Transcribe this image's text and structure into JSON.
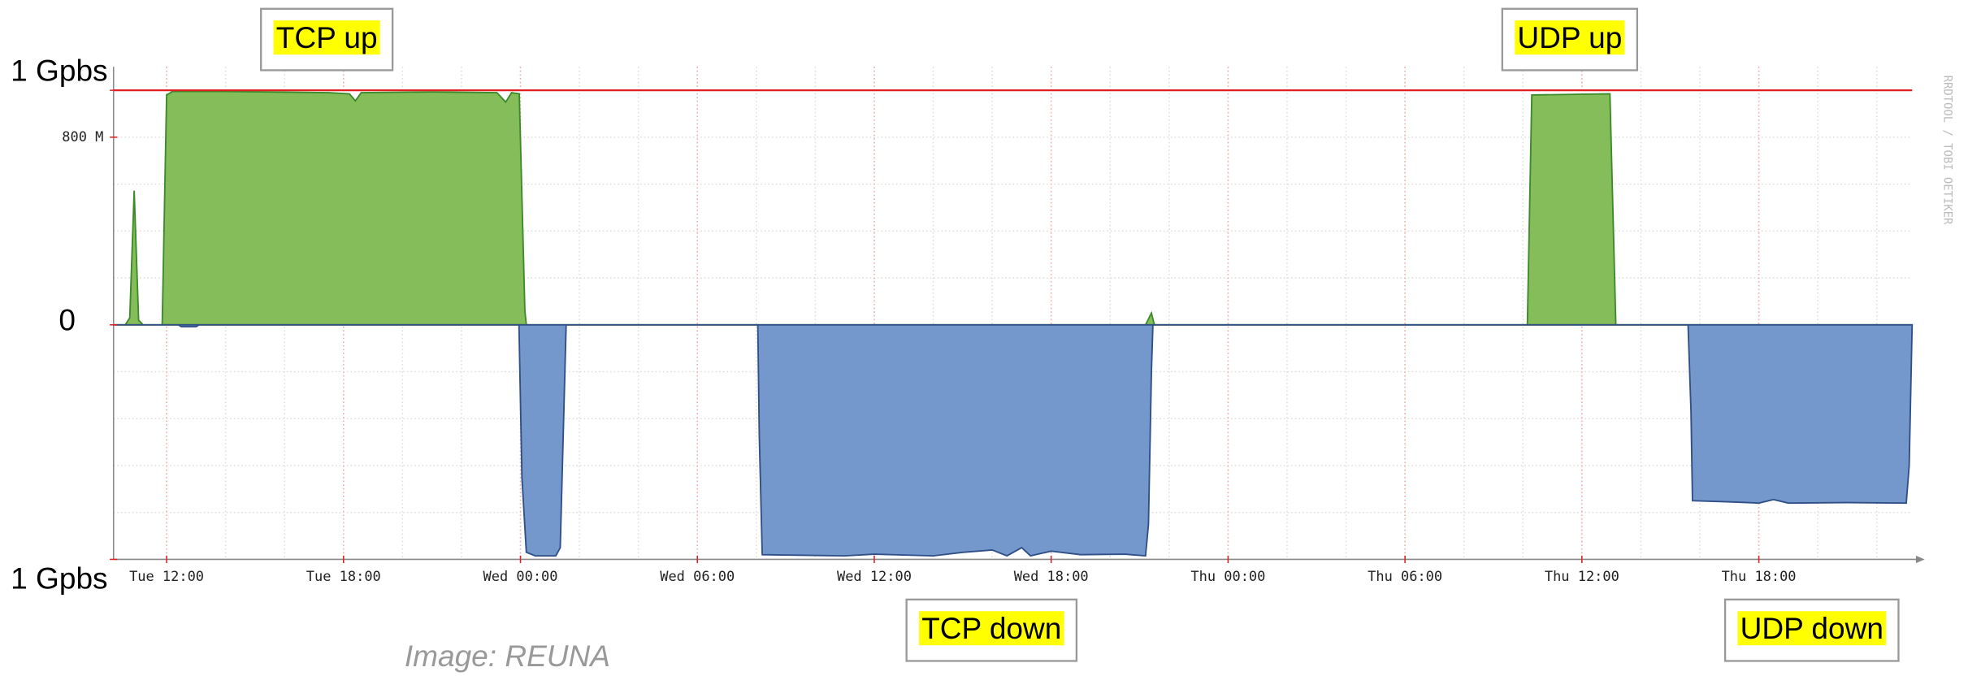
{
  "chart_data": {
    "type": "area",
    "xlim": [
      10.2,
      71.2
    ],
    "xticks": [
      {
        "value": 12,
        "label": "Tue 12:00"
      },
      {
        "value": 18,
        "label": "Tue 18:00"
      },
      {
        "value": 24,
        "label": "Wed 00:00"
      },
      {
        "value": 30,
        "label": "Wed 06:00"
      },
      {
        "value": 36,
        "label": "Wed 12:00"
      },
      {
        "value": 42,
        "label": "Wed 18:00"
      },
      {
        "value": 48,
        "label": "Thu 00:00"
      },
      {
        "value": 54,
        "label": "Thu 06:00"
      },
      {
        "value": 60,
        "label": "Thu 12:00"
      },
      {
        "value": 66,
        "label": "Thu 18:00"
      }
    ],
    "ylim": [
      -1000,
      1100
    ],
    "yticks": [
      {
        "value": 1000,
        "label": "1 Gpbs"
      },
      {
        "value": 800,
        "label": "800 M"
      },
      0,
      {
        "value": -1000,
        "label": "1 Gpbs"
      }
    ],
    "limit_line": 1000,
    "limit_color": "#e02020",
    "grid": true,
    "series": [
      {
        "color": "#84bd5a",
        "line_color": "#3d8a2a",
        "x": [
          10.2,
          10.6,
          10.75,
          10.9,
          11.05,
          11.2,
          11.85,
          12.0,
          12.2,
          14,
          16,
          17.5,
          18.2,
          18.4,
          18.6,
          21,
          23.2,
          23.5,
          23.7,
          23.96,
          24.15,
          24.2,
          45.2,
          45.4,
          45.5,
          58.15,
          58.3,
          60.95,
          61.15,
          71.2
        ],
        "values": [
          0,
          0,
          30,
          572,
          20,
          0,
          0,
          980,
          995,
          995,
          992,
          990,
          985,
          955,
          990,
          993,
          990,
          950,
          990,
          985,
          60,
          0,
          0,
          50,
          0,
          0,
          980,
          985,
          0,
          0
        ]
      },
      {
        "color": "#7497cc",
        "line_color": "#2f4f86",
        "x": [
          10.2,
          12.4,
          12.5,
          13,
          13.1,
          23.95,
          24.05,
          24.2,
          24.5,
          25.2,
          25.35,
          25.55,
          32.05,
          32.1,
          32.2,
          35,
          36,
          38,
          39,
          40,
          40.5,
          41,
          41.3,
          42,
          43,
          44.5,
          45.2,
          45.3,
          45.4,
          45.45,
          63.6,
          63.7,
          63.75,
          65,
          66,
          66.5,
          67,
          69,
          71.0,
          71.1,
          71.2
        ],
        "values": [
          0,
          0,
          -8,
          -8,
          0,
          0,
          -650,
          -970,
          -985,
          -985,
          -950,
          0,
          0,
          -470,
          -980,
          -985,
          -978,
          -985,
          -970,
          -960,
          -985,
          -950,
          -985,
          -965,
          -980,
          -978,
          -985,
          -850,
          -200,
          0,
          0,
          -370,
          -750,
          -755,
          -760,
          -745,
          -760,
          -758,
          -760,
          -600,
          0
        ]
      }
    ],
    "annotations": [
      "TCP up",
      "UDP up",
      "TCP down",
      "UDP down"
    ],
    "credit": "Image: REUNA",
    "watermark": "RRDTOOL / TOBI OETIKER"
  }
}
